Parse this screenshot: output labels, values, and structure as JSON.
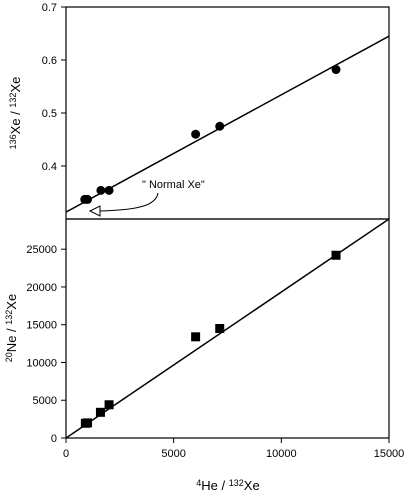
{
  "chart_data": [
    {
      "type": "scatter",
      "panel": "top",
      "ylabel": "136Xe / 132Xe",
      "ylabel_parts": {
        "sup1": "136",
        "base1": "Xe / ",
        "sup2": "132",
        "base2": "Xe"
      },
      "xlim": [
        0,
        15000
      ],
      "ylim": [
        0.3,
        0.7
      ],
      "yticks": [
        0.4,
        0.5,
        0.6,
        0.7
      ],
      "ytick_labels": [
        "0.4",
        "0.5",
        "0.6",
        "0.7"
      ],
      "grid": false,
      "series": [
        {
          "marker": "circle",
          "x": [
            870,
            1000,
            1620,
            2000,
            6020,
            7140,
            12540
          ],
          "y": [
            0.337,
            0.337,
            0.354,
            0.354,
            0.46,
            0.475,
            0.582
          ]
        }
      ],
      "fit_line": {
        "x": [
          0,
          15000
        ],
        "y": [
          0.313,
          0.645
        ]
      },
      "annotation": {
        "text": "\" Normal Xe\"",
        "arrow_target": {
          "x": 900,
          "y": 0.313
        }
      }
    },
    {
      "type": "scatter",
      "panel": "bottom",
      "xlabel": "4He / 132Xe",
      "xlabel_parts": {
        "sup1": "4",
        "base1": "He / ",
        "sup2": "132",
        "base2": "Xe"
      },
      "ylabel": "20Ne / 132Xe",
      "ylabel_parts": {
        "sup1": "20",
        "base1": "Ne / ",
        "sup2": "132",
        "base2": "Xe"
      },
      "xlim": [
        0,
        15000
      ],
      "ylim": [
        0,
        29000
      ],
      "xticks": [
        0,
        5000,
        10000,
        15000
      ],
      "xtick_labels": [
        "0",
        "5000",
        "10000",
        "15000"
      ],
      "yticks": [
        0,
        5000,
        10000,
        15000,
        20000,
        25000
      ],
      "ytick_labels": [
        "0",
        "5000",
        "10000",
        "15000",
        "20000",
        "25000"
      ],
      "grid": false,
      "series": [
        {
          "marker": "square",
          "x": [
            900,
            1000,
            1600,
            2000,
            6020,
            7140,
            12540
          ],
          "y": [
            1950,
            2000,
            3400,
            4400,
            13400,
            14500,
            24200
          ]
        }
      ],
      "fit_line": {
        "x": [
          0,
          15000
        ],
        "y": [
          0,
          29000
        ]
      }
    }
  ]
}
